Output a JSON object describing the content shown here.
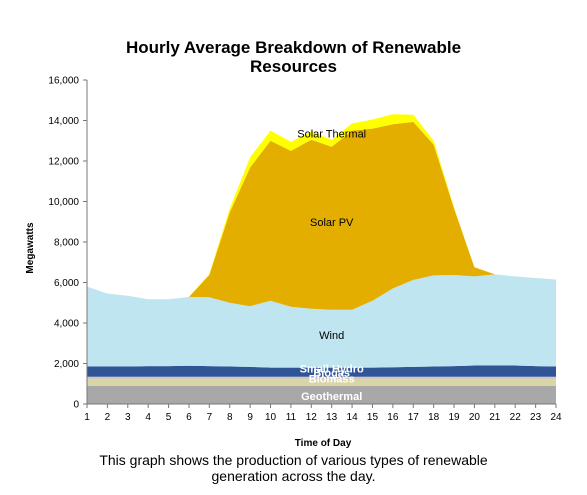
{
  "chart_data": {
    "type": "area",
    "stacked": true,
    "title": "Hourly Average Breakdown of Renewable\nResources",
    "xlabel": "Time of Day",
    "ylabel": "Megawatts",
    "x": [
      1,
      2,
      3,
      4,
      5,
      6,
      7,
      8,
      9,
      10,
      11,
      12,
      13,
      14,
      15,
      16,
      17,
      18,
      19,
      20,
      21,
      22,
      23,
      24
    ],
    "ylim": [
      0,
      16000
    ],
    "yticks": [
      0,
      2000,
      4000,
      6000,
      8000,
      10000,
      12000,
      14000,
      16000
    ],
    "ytick_labels": [
      "0",
      "2,000",
      "4,000",
      "6,000",
      "8,000",
      "10,000",
      "12,000",
      "14,000",
      "16,000"
    ],
    "grid": false,
    "series": [
      {
        "name": "Geothermal",
        "color": "#a8a8a8",
        "values": [
          900,
          900,
          900,
          900,
          900,
          900,
          900,
          900,
          900,
          900,
          900,
          900,
          900,
          900,
          900,
          900,
          900,
          900,
          900,
          900,
          900,
          900,
          900,
          900
        ]
      },
      {
        "name": "Biomass",
        "color": "#d9d6a6",
        "values": [
          300,
          300,
          300,
          300,
          300,
          300,
          300,
          300,
          300,
          300,
          300,
          300,
          300,
          300,
          300,
          300,
          300,
          300,
          300,
          300,
          300,
          300,
          300,
          300
        ]
      },
      {
        "name": "Biogas",
        "color": "#d6c6c0",
        "values": [
          150,
          150,
          150,
          150,
          150,
          150,
          150,
          150,
          150,
          150,
          150,
          150,
          150,
          150,
          150,
          150,
          150,
          150,
          150,
          150,
          150,
          150,
          150,
          150
        ]
      },
      {
        "name": "Small Hydro",
        "color": "#2f5597",
        "values": [
          500,
          500,
          500,
          520,
          520,
          540,
          520,
          500,
          480,
          450,
          450,
          450,
          450,
          450,
          450,
          460,
          480,
          500,
          520,
          550,
          550,
          550,
          520,
          500
        ]
      },
      {
        "name": "Wind",
        "color": "#bfe5f0",
        "values": [
          3950,
          3600,
          3500,
          3300,
          3300,
          3400,
          3400,
          3150,
          3000,
          3300,
          3000,
          2900,
          2850,
          2850,
          3300,
          3900,
          4300,
          4500,
          4500,
          4400,
          4500,
          4400,
          4350,
          4300
        ]
      },
      {
        "name": "Solar PV",
        "color": "#e3ae00",
        "values": [
          0,
          0,
          0,
          0,
          0,
          0,
          1100,
          4450,
          6850,
          7900,
          7700,
          8350,
          8050,
          8850,
          8500,
          8100,
          7800,
          6450,
          3300,
          450,
          0,
          0,
          0,
          0
        ]
      },
      {
        "name": "Solar Thermal",
        "color": "#ffff00",
        "values": [
          0,
          0,
          0,
          0,
          0,
          0,
          50,
          200,
          500,
          500,
          450,
          400,
          350,
          350,
          450,
          500,
          350,
          200,
          50,
          0,
          0,
          0,
          0,
          0
        ]
      }
    ]
  },
  "caption": "This graph shows the production of various types of renewable\ngeneration across the day."
}
